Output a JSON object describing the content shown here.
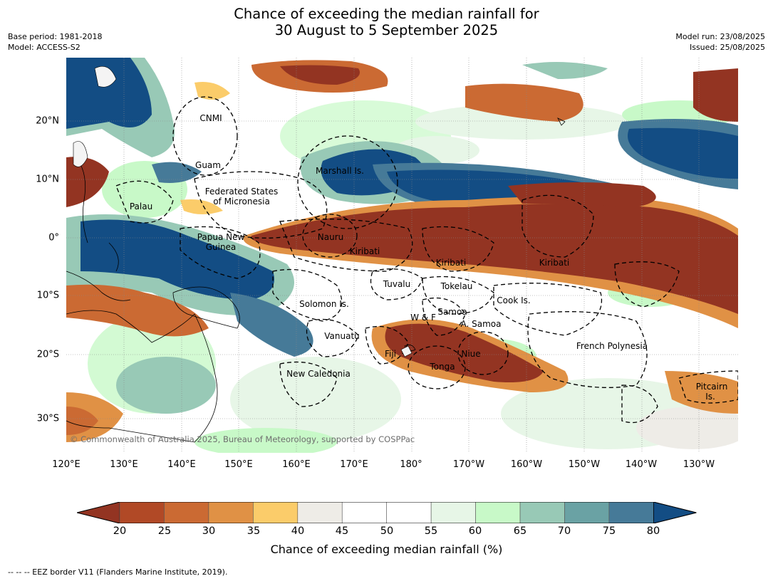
{
  "title": {
    "line1": "Chance of exceeding the median rainfall for",
    "line2": "30 August to 5 September 2025"
  },
  "meta": {
    "base_period": "Base period: 1981-2018",
    "model": "Model: ACCESS-S2",
    "model_run": "Model run: 23/08/2025",
    "issued": "Issued: 25/08/2025"
  },
  "axes": {
    "lon_ticks": [
      "120°E",
      "130°E",
      "140°E",
      "150°E",
      "160°E",
      "170°E",
      "180°",
      "170°W",
      "160°W",
      "150°W",
      "140°W",
      "130°W"
    ],
    "lat_ticks": [
      "20°N",
      "10°N",
      "0°",
      "10°S",
      "20°S",
      "30°S"
    ]
  },
  "places": [
    {
      "text": "CNMI"
    },
    {
      "text": "Guam"
    },
    {
      "text": "Marshall Is."
    },
    {
      "text": "Federated States"
    },
    {
      "text": "of Micronesia"
    },
    {
      "text": "Palau"
    },
    {
      "text": "Papua New"
    },
    {
      "text": "Guinea"
    },
    {
      "text": "Nauru"
    },
    {
      "text": "Kiribati"
    },
    {
      "text": "Kiribati"
    },
    {
      "text": "Kiribati"
    },
    {
      "text": "Tuvalu"
    },
    {
      "text": "Tokelau"
    },
    {
      "text": "Solomon Is."
    },
    {
      "text": "Cook Is."
    },
    {
      "text": "W & F"
    },
    {
      "text": "Samoa"
    },
    {
      "text": "A. Samoa"
    },
    {
      "text": "Vanuatu"
    },
    {
      "text": "Fiji"
    },
    {
      "text": "Niue"
    },
    {
      "text": "French Polynesia"
    },
    {
      "text": "Tonga"
    },
    {
      "text": "New Caledonia"
    },
    {
      "text": "Pitcairn"
    },
    {
      "text": "Is."
    }
  ],
  "copyright": "© Commonwealth of Australia 2025, Bureau of Meteorology, supported by COSPPac",
  "colorbar": {
    "labels": [
      "20",
      "25",
      "30",
      "35",
      "40",
      "45",
      "50",
      "55",
      "60",
      "65",
      "70",
      "75",
      "80"
    ],
    "colors": [
      "#933422",
      "#b14926",
      "#cb6a33",
      "#e09145",
      "#fbcc6a",
      "#eeece7",
      "#ffffff",
      "#ffffff",
      "#e7f6e7",
      "#c8f9c8",
      "#98c9b6",
      "#6aa2a4",
      "#467a98"
    ],
    "under_color": "#933422",
    "over_color": "#134d84",
    "title": "Chance of exceeding median rainfall (%)"
  },
  "footer": "-- -- -- EEZ border V11 (Flanders Marine Institute, 2019)."
}
